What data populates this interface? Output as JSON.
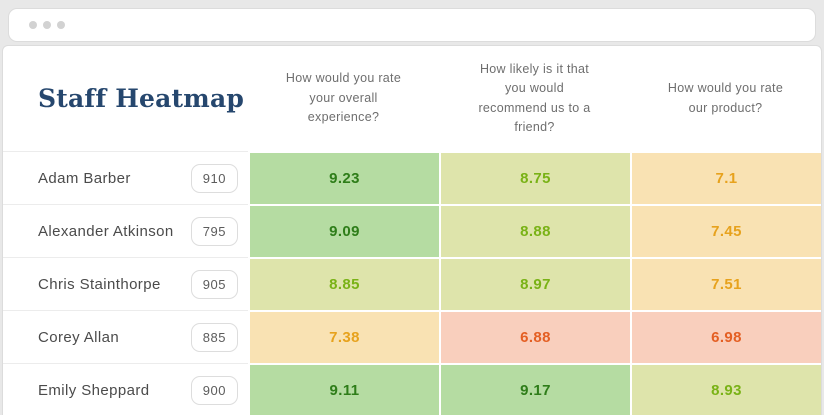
{
  "window": {
    "dots": [
      "window-dot",
      "window-dot",
      "window-dot"
    ]
  },
  "title": "Staff Heatmap",
  "columns": [
    "How would you rate your overall experience?",
    "How likely is it that you would recommend us to a friend?",
    "How would you rate our product?"
  ],
  "rows": [
    {
      "name": "Adam Barber",
      "badge": "910",
      "cells": [
        {
          "value": "9.23",
          "level": "green"
        },
        {
          "value": "8.75",
          "level": "yellow-green"
        },
        {
          "value": "7.1",
          "level": "orange"
        }
      ]
    },
    {
      "name": "Alexander Atkinson",
      "badge": "795",
      "cells": [
        {
          "value": "9.09",
          "level": "green"
        },
        {
          "value": "8.88",
          "level": "yellow-green"
        },
        {
          "value": "7.45",
          "level": "orange"
        }
      ]
    },
    {
      "name": "Chris Stainthorpe",
      "badge": "905",
      "cells": [
        {
          "value": "8.85",
          "level": "yellow-green"
        },
        {
          "value": "8.97",
          "level": "yellow-green"
        },
        {
          "value": "7.51",
          "level": "orange"
        }
      ]
    },
    {
      "name": "Corey Allan",
      "badge": "885",
      "cells": [
        {
          "value": "7.38",
          "level": "orange"
        },
        {
          "value": "6.88",
          "level": "salmon"
        },
        {
          "value": "6.98",
          "level": "salmon"
        }
      ]
    },
    {
      "name": "Emily Sheppard",
      "badge": "900",
      "cells": [
        {
          "value": "9.11",
          "level": "green"
        },
        {
          "value": "9.17",
          "level": "green"
        },
        {
          "value": "8.93",
          "level": "yellow-green"
        }
      ]
    }
  ],
  "colors": {
    "green": {
      "bg": "#b5dca2",
      "text": "#2e7d19"
    },
    "yellow-green": {
      "bg": "#dee4ab",
      "text": "#79b216"
    },
    "orange": {
      "bg": "#f9e2b3",
      "text": "#e7a21d"
    },
    "salmon": {
      "bg": "#f9cfbd",
      "text": "#e45f23"
    },
    "title_navy": "#26476e",
    "page_bg": "#e8e8e8"
  },
  "chart_data": {
    "type": "heatmap",
    "title": "Staff Heatmap",
    "columns": [
      "How would you rate your overall experience?",
      "How likely is it that you would recommend us to a friend?",
      "How would you rate our product?"
    ],
    "rows": [
      "Adam Barber",
      "Alexander Atkinson",
      "Chris Stainthorpe",
      "Corey Allan",
      "Emily Sheppard"
    ],
    "row_badges": [
      910,
      795,
      905,
      885,
      900
    ],
    "values": [
      [
        9.23,
        8.75,
        7.1
      ],
      [
        9.09,
        8.88,
        7.45
      ],
      [
        8.85,
        8.97,
        7.51
      ],
      [
        7.38,
        6.88,
        6.98
      ],
      [
        9.11,
        9.17,
        8.93
      ]
    ],
    "value_range": [
      6.88,
      9.23
    ],
    "color_scale": "red-yellow-green"
  }
}
